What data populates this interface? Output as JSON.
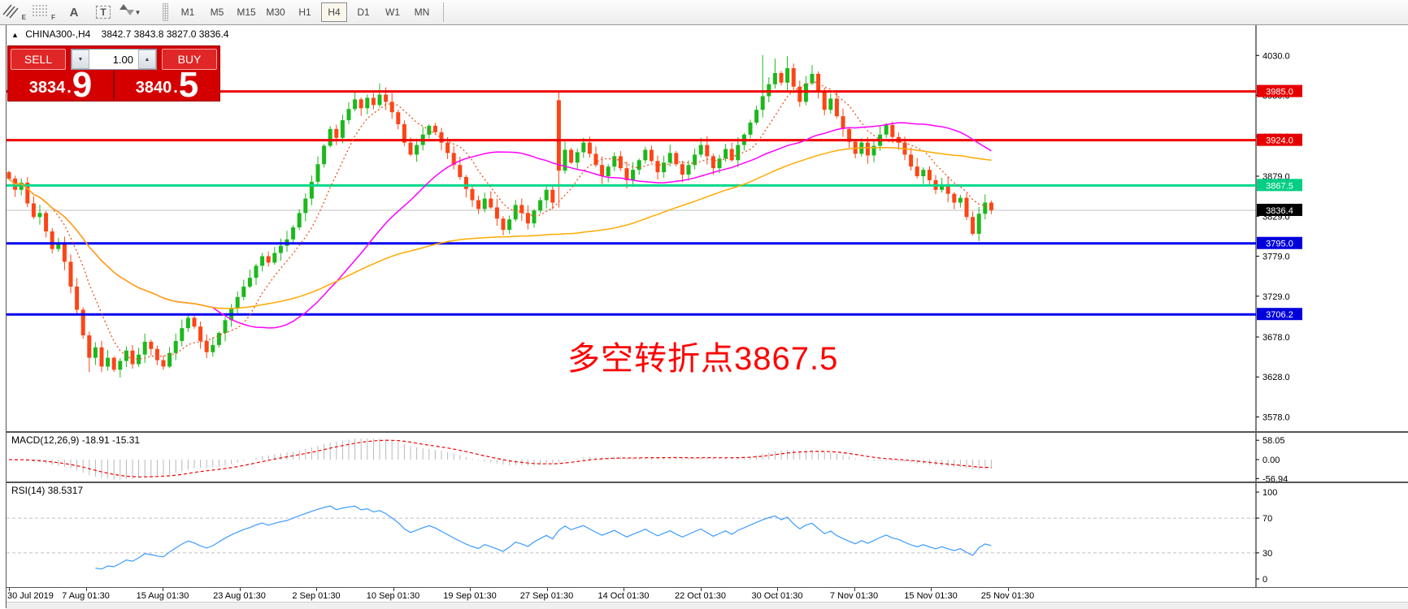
{
  "toolbar": {
    "icons": [
      {
        "name": "channels-tool-icon",
        "sub": "E"
      },
      {
        "name": "fibonacci-tool-icon",
        "sub": "F"
      },
      {
        "name": "text-tool-icon",
        "sub": ""
      },
      {
        "name": "text-label-tool-icon",
        "sub": ""
      },
      {
        "name": "arrow-objects-icon",
        "sub": ""
      }
    ],
    "timeframes": [
      "M1",
      "M5",
      "M15",
      "M30",
      "H1",
      "H4",
      "D1",
      "W1",
      "MN"
    ],
    "active_timeframe": "H4"
  },
  "chart": {
    "title_symbol": "CHINA300-,H4",
    "title_ohlc": "3842.7 3843.8 3827.0 3836.4",
    "annotation": "多空转折点3867.5",
    "annotation_color": "#ff0000"
  },
  "trade_panel": {
    "sell_label": "SELL",
    "buy_label": "BUY",
    "volume": "1.00",
    "dot": ".",
    "sell_price_main": "3834",
    "sell_price_big": "9",
    "buy_price_main": "3840",
    "buy_price_big": "5"
  },
  "macd": {
    "label": "MACD(12,26,9) -18.91 -15.31",
    "ticks": [
      {
        "v": 58.05,
        "label": "58.05"
      },
      {
        "v": 0,
        "label": "0.00"
      },
      {
        "v": -56.94,
        "label": "-56.94"
      }
    ]
  },
  "rsi": {
    "label": "RSI(14) 38.5317",
    "ticks": [
      {
        "v": 100,
        "label": "100"
      },
      {
        "v": 70,
        "label": "70"
      },
      {
        "v": 30,
        "label": "30"
      },
      {
        "v": 0,
        "label": "0"
      }
    ],
    "levels": [
      70,
      30
    ],
    "line_color": "#3d9bff"
  },
  "chart_data": {
    "type": "candlestick",
    "symbol": "CHINA300-",
    "timeframe": "H4",
    "up_color": "#1cb81c",
    "down_color": "#fc4516",
    "x_labels": [
      "30 Jul 2019",
      "7 Aug 01:30",
      "15 Aug 01:30",
      "23 Aug 01:30",
      "2 Sep 01:30",
      "10 Sep 01:30",
      "19 Sep 01:30",
      "27 Sep 01:30",
      "14 Oct 01:30",
      "22 Oct 01:30",
      "30 Oct 01:30",
      "7 Nov 01:30",
      "15 Nov 01:30",
      "25 Nov 01:30"
    ],
    "y_ticks": [
      4030.0,
      3980.0,
      3929.0,
      3879.0,
      3829.0,
      3779.0,
      3729.0,
      3678.0,
      3628.0,
      3578.0
    ],
    "levels": [
      {
        "price": 3985.0,
        "label": "3985.0",
        "color": "#f00000",
        "badge": "#e60000"
      },
      {
        "price": 3924.0,
        "label": "3924.0",
        "color": "#f00000",
        "badge": "#e60000"
      },
      {
        "price": 3867.5,
        "label": "3867.5",
        "color": "#00d98b",
        "badge": "#00cf85"
      },
      {
        "price": 3795.0,
        "label": "3795.0",
        "color": "#0000f0",
        "badge": "#0000dc"
      },
      {
        "price": 3706.2,
        "label": "3706.2",
        "color": "#0000f0",
        "badge": "#0000dc"
      }
    ],
    "current": {
      "price": 3836.4,
      "label": "3836.4",
      "line_color": "#c0c0c0",
      "badge": "#000000"
    },
    "close": [
      3876,
      3862,
      3871,
      3845,
      3828,
      3833,
      3810,
      3788,
      3796,
      3772,
      3741,
      3712,
      3680,
      3652,
      3665,
      3641,
      3652,
      3637,
      3648,
      3661,
      3644,
      3656,
      3672,
      3663,
      3649,
      3641,
      3658,
      3673,
      3689,
      3702,
      3691,
      3673,
      3659,
      3668,
      3683,
      3699,
      3714,
      3728,
      3741,
      3752,
      3767,
      3779,
      3771,
      3783,
      3792,
      3800,
      3815,
      3833,
      3851,
      3872,
      3894,
      3917,
      3938,
      3927,
      3949,
      3963,
      3975,
      3964,
      3977,
      3968,
      3981,
      3972,
      3959,
      3944,
      3921,
      3906,
      3918,
      3931,
      3942,
      3934,
      3921,
      3908,
      3893,
      3878,
      3863,
      3849,
      3838,
      3851,
      3840,
      3826,
      3812,
      3825,
      3843,
      3833,
      3820,
      3836,
      3849,
      3862,
      3846,
      3886,
      3912,
      3896,
      3909,
      3921,
      3907,
      3893,
      3879,
      3891,
      3904,
      3889,
      3874,
      3887,
      3899,
      3912,
      3898,
      3884,
      3896,
      3908,
      3894,
      3881,
      3893,
      3906,
      3918,
      3904,
      3889,
      3901,
      3913,
      3899,
      3918,
      3931,
      3946,
      3962,
      3979,
      3994,
      4008,
      3996,
      4014,
      3991,
      3972,
      3995,
      4007,
      3985,
      3962,
      3976,
      3954,
      3938,
      3922,
      3907,
      3921,
      3905,
      3917,
      3931,
      3943,
      3928,
      3921,
      3906,
      3891,
      3879,
      3887,
      3874,
      3862,
      3869,
      3857,
      3846,
      3852,
      3828,
      3807,
      3832,
      3846,
      3836.4
    ],
    "overrides": {
      "0": {
        "open": 3884
      },
      "13": {
        "low": 3634
      },
      "60": {
        "high": 3995
      },
      "89": {
        "open": 3974,
        "high": 3985
      },
      "122": {
        "high": 4030.5
      },
      "124": {
        "high": 4026
      },
      "126": {
        "high": 4029
      }
    },
    "moving_averages": [
      {
        "period": 8,
        "color": "#e8551e",
        "dash": "2,3",
        "width": 1.3
      },
      {
        "period": 34,
        "color": "#ff00ff",
        "dash": "",
        "width": 1.5
      },
      {
        "period": 89,
        "color": "#ffaa00",
        "dash": "",
        "width": 1.5
      }
    ],
    "macd_params": {
      "fast": 12,
      "slow": 26,
      "signal": 9,
      "hist_color": "#b8b8b8",
      "signal_color": "#f00000"
    },
    "rsi_period": 14
  }
}
